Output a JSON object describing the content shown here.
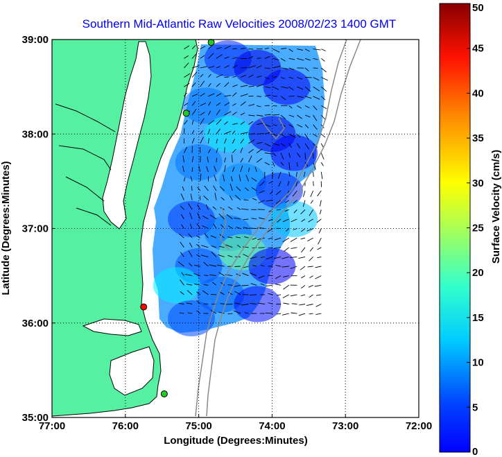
{
  "chart_data": {
    "type": "heatmap",
    "title": "Southern Mid-Atlantic Raw Velocities 2008/02/23 1400 GMT",
    "xlabel": "Longitude (Degrees:Minutes)",
    "ylabel": "Latitude (Degrees:Minutes)",
    "x_ticks": [
      "77:00",
      "76:00",
      "75:00",
      "74:00",
      "73:00",
      "72:00"
    ],
    "x_tick_values": [
      -77,
      -76,
      -75,
      -74,
      -73,
      -72
    ],
    "y_ticks": [
      "39:00",
      "38:00",
      "37:00",
      "36:00",
      "35:00"
    ],
    "y_tick_values": [
      39,
      38,
      37,
      36,
      35
    ],
    "xlim": [
      -77,
      -72
    ],
    "ylim": [
      35,
      39
    ],
    "grid": true,
    "colorbar": {
      "label": "Surface Velocity (cm/s)",
      "range": [
        0,
        50
      ],
      "ticks": [
        "50",
        "45",
        "40",
        "35",
        "30",
        "25",
        "20",
        "15",
        "10",
        "5",
        "0"
      ],
      "tick_values": [
        50,
        45,
        40,
        35,
        30,
        25,
        20,
        15,
        10,
        5,
        0
      ]
    },
    "stations": [
      {
        "lon": -74.83,
        "lat": 38.97,
        "color": "green"
      },
      {
        "lon": -75.17,
        "lat": 38.22,
        "color": "green"
      },
      {
        "lon": -75.75,
        "lat": 36.17,
        "color": "red"
      },
      {
        "lon": -75.47,
        "lat": 35.25,
        "color": "green"
      }
    ],
    "velocity_field": [
      {
        "lon": -74.6,
        "lat": 38.8,
        "speed": 8
      },
      {
        "lon": -74.2,
        "lat": 38.7,
        "speed": 5
      },
      {
        "lon": -73.8,
        "lat": 38.5,
        "speed": 6
      },
      {
        "lon": -74.9,
        "lat": 38.3,
        "speed": 12
      },
      {
        "lon": -74.6,
        "lat": 38.0,
        "speed": 18
      },
      {
        "lon": -74.0,
        "lat": 38.0,
        "speed": 5
      },
      {
        "lon": -73.7,
        "lat": 37.8,
        "speed": 6
      },
      {
        "lon": -75.0,
        "lat": 37.7,
        "speed": 12
      },
      {
        "lon": -74.4,
        "lat": 37.5,
        "speed": 13
      },
      {
        "lon": -73.9,
        "lat": 37.4,
        "speed": 8
      },
      {
        "lon": -73.7,
        "lat": 37.1,
        "speed": 16
      },
      {
        "lon": -75.1,
        "lat": 37.1,
        "speed": 9
      },
      {
        "lon": -74.6,
        "lat": 36.95,
        "speed": 12
      },
      {
        "lon": -74.4,
        "lat": 36.75,
        "speed": 24
      },
      {
        "lon": -75.0,
        "lat": 36.6,
        "speed": 10
      },
      {
        "lon": -74.0,
        "lat": 36.6,
        "speed": 6
      },
      {
        "lon": -75.3,
        "lat": 36.4,
        "speed": 18
      },
      {
        "lon": -74.7,
        "lat": 36.3,
        "speed": 11
      },
      {
        "lon": -74.2,
        "lat": 36.2,
        "speed": 7
      },
      {
        "lon": -75.1,
        "lat": 36.05,
        "speed": 10
      }
    ]
  }
}
